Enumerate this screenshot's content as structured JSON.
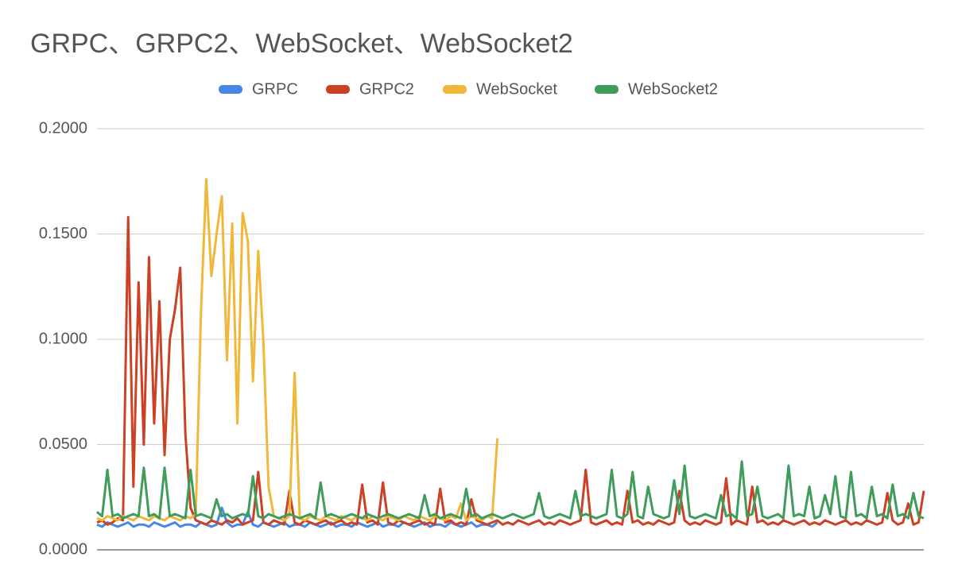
{
  "chart_data": {
    "type": "line",
    "title": "GRPC、GRPC2、WebSocket、WebSocket2",
    "ylim": [
      0,
      0.2
    ],
    "yticks": [
      {
        "value": 0,
        "label": "0.0000"
      },
      {
        "value": 0.05,
        "label": "0.0500"
      },
      {
        "value": 0.1,
        "label": "0.1000"
      },
      {
        "value": 0.15,
        "label": "0.1500"
      },
      {
        "value": 0.2,
        "label": "0.2000"
      }
    ],
    "grid": true,
    "legend": "top",
    "series": [
      {
        "name": "GRPC",
        "color": "#4a86e8",
        "values": [
          0.012,
          0.011,
          0.013,
          0.012,
          0.011,
          0.012,
          0.013,
          0.011,
          0.012,
          0.012,
          0.011,
          0.013,
          0.012,
          0.011,
          0.012,
          0.013,
          0.011,
          0.012,
          0.012,
          0.011,
          0.013,
          0.012,
          0.011,
          0.012,
          0.02,
          0.013,
          0.011,
          0.012,
          0.012,
          0.018,
          0.012,
          0.011,
          0.013,
          0.012,
          0.011,
          0.012,
          0.013,
          0.011,
          0.012,
          0.012,
          0.011,
          0.013,
          0.012,
          0.011,
          0.012,
          0.013,
          0.011,
          0.012,
          0.012,
          0.011,
          0.013,
          0.012,
          0.011,
          0.012,
          0.013,
          0.011,
          0.012,
          0.012,
          0.011,
          0.013,
          0.012,
          0.011,
          0.012,
          0.013,
          0.011,
          0.012,
          0.012,
          0.011,
          0.013,
          0.012,
          0.011,
          0.012,
          0.013,
          0.011,
          0.012,
          0.012,
          0.011,
          0.013
        ]
      },
      {
        "name": "GRPC2",
        "color": "#cc4125",
        "values": [
          0.013,
          0.014,
          0.012,
          0.013,
          0.015,
          0.014,
          0.158,
          0.03,
          0.127,
          0.05,
          0.139,
          0.06,
          0.118,
          0.045,
          0.1,
          0.114,
          0.134,
          0.055,
          0.02,
          0.014,
          0.013,
          0.012,
          0.014,
          0.013,
          0.012,
          0.014,
          0.013,
          0.015,
          0.012,
          0.013,
          0.014,
          0.037,
          0.013,
          0.012,
          0.014,
          0.013,
          0.012,
          0.028,
          0.013,
          0.012,
          0.014,
          0.013,
          0.012,
          0.013,
          0.014,
          0.012,
          0.013,
          0.014,
          0.012,
          0.013,
          0.012,
          0.031,
          0.013,
          0.014,
          0.012,
          0.032,
          0.013,
          0.012,
          0.014,
          0.013,
          0.012,
          0.013,
          0.014,
          0.012,
          0.013,
          0.012,
          0.029,
          0.013,
          0.014,
          0.012,
          0.013,
          0.012,
          0.024,
          0.014,
          0.013,
          0.012,
          0.013,
          0.014,
          0.012,
          0.013,
          0.012,
          0.014,
          0.013,
          0.012,
          0.013,
          0.014,
          0.012,
          0.013,
          0.012,
          0.014,
          0.013,
          0.012,
          0.013,
          0.014,
          0.038,
          0.013,
          0.012,
          0.013,
          0.014,
          0.012,
          0.013,
          0.012,
          0.028,
          0.013,
          0.014,
          0.012,
          0.013,
          0.012,
          0.014,
          0.013,
          0.012,
          0.013,
          0.028,
          0.014,
          0.012,
          0.013,
          0.012,
          0.014,
          0.013,
          0.012,
          0.013,
          0.034,
          0.012,
          0.014,
          0.013,
          0.012,
          0.03,
          0.013,
          0.014,
          0.012,
          0.013,
          0.012,
          0.014,
          0.013,
          0.012,
          0.013,
          0.014,
          0.012,
          0.013,
          0.012,
          0.014,
          0.013,
          0.012,
          0.013,
          0.014,
          0.012,
          0.013,
          0.012,
          0.014,
          0.013,
          0.012,
          0.013,
          0.027,
          0.014,
          0.012,
          0.013,
          0.022,
          0.012,
          0.013,
          0.028
        ]
      },
      {
        "name": "WebSocket",
        "color": "#f1b739",
        "values": [
          0.015,
          0.014,
          0.016,
          0.015,
          0.014,
          0.016,
          0.015,
          0.014,
          0.016,
          0.015,
          0.014,
          0.016,
          0.015,
          0.014,
          0.016,
          0.015,
          0.014,
          0.016,
          0.015,
          0.017,
          0.113,
          0.176,
          0.13,
          0.15,
          0.168,
          0.09,
          0.155,
          0.06,
          0.16,
          0.147,
          0.08,
          0.142,
          0.099,
          0.03,
          0.016,
          0.015,
          0.014,
          0.016,
          0.084,
          0.015,
          0.014,
          0.016,
          0.015,
          0.014,
          0.016,
          0.015,
          0.014,
          0.016,
          0.015,
          0.014,
          0.016,
          0.015,
          0.014,
          0.016,
          0.015,
          0.014,
          0.016,
          0.015,
          0.014,
          0.016,
          0.015,
          0.014,
          0.016,
          0.015,
          0.014,
          0.016,
          0.015,
          0.014,
          0.016,
          0.015,
          0.022,
          0.014,
          0.016,
          0.015,
          0.014,
          0.016,
          0.015,
          0.053
        ]
      },
      {
        "name": "WebSocket2",
        "color": "#3f9c5a",
        "values": [
          0.018,
          0.016,
          0.038,
          0.016,
          0.017,
          0.015,
          0.016,
          0.017,
          0.016,
          0.039,
          0.016,
          0.017,
          0.015,
          0.039,
          0.016,
          0.017,
          0.016,
          0.015,
          0.038,
          0.016,
          0.017,
          0.016,
          0.015,
          0.024,
          0.016,
          0.017,
          0.015,
          0.016,
          0.017,
          0.016,
          0.035,
          0.016,
          0.015,
          0.017,
          0.016,
          0.015,
          0.016,
          0.017,
          0.016,
          0.015,
          0.016,
          0.017,
          0.015,
          0.032,
          0.016,
          0.017,
          0.016,
          0.015,
          0.016,
          0.017,
          0.016,
          0.015,
          0.017,
          0.016,
          0.015,
          0.016,
          0.017,
          0.016,
          0.015,
          0.016,
          0.017,
          0.016,
          0.015,
          0.026,
          0.016,
          0.017,
          0.015,
          0.016,
          0.017,
          0.016,
          0.015,
          0.029,
          0.016,
          0.017,
          0.015,
          0.016,
          0.017,
          0.016,
          0.015,
          0.016,
          0.017,
          0.016,
          0.015,
          0.016,
          0.017,
          0.027,
          0.016,
          0.015,
          0.016,
          0.017,
          0.016,
          0.015,
          0.028,
          0.016,
          0.017,
          0.016,
          0.015,
          0.016,
          0.017,
          0.038,
          0.016,
          0.015,
          0.017,
          0.037,
          0.016,
          0.015,
          0.03,
          0.017,
          0.016,
          0.015,
          0.016,
          0.033,
          0.017,
          0.04,
          0.016,
          0.015,
          0.016,
          0.017,
          0.016,
          0.015,
          0.026,
          0.016,
          0.017,
          0.015,
          0.042,
          0.016,
          0.017,
          0.03,
          0.016,
          0.015,
          0.016,
          0.017,
          0.015,
          0.04,
          0.016,
          0.017,
          0.016,
          0.03,
          0.015,
          0.016,
          0.026,
          0.017,
          0.035,
          0.016,
          0.015,
          0.037,
          0.016,
          0.017,
          0.015,
          0.03,
          0.016,
          0.017,
          0.015,
          0.031,
          0.016,
          0.017,
          0.015,
          0.027,
          0.016,
          0.015
        ]
      }
    ]
  }
}
